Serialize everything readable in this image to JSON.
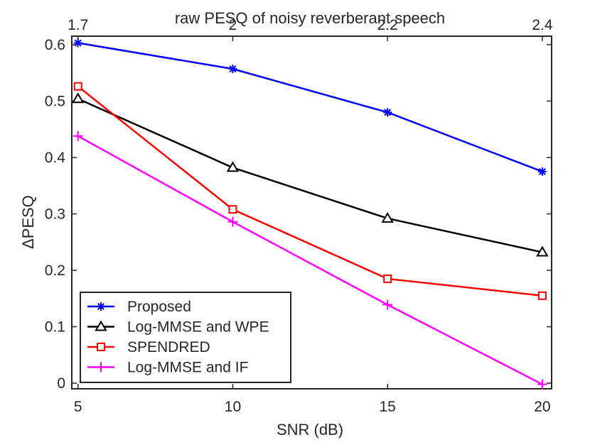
{
  "chart_data": {
    "type": "line",
    "title": "",
    "xlabel": "SNR (dB)",
    "ylabel_prefix": "Δ",
    "ylabel": "PESQ",
    "top_xlabel": "raw PESQ of noisy reverberant speech",
    "x": [
      5,
      10,
      15,
      20
    ],
    "xlim": [
      4.8,
      20.3
    ],
    "ylim": [
      -0.01,
      0.615
    ],
    "xticks": [
      5,
      10,
      15,
      20
    ],
    "xtick_labels": [
      "5",
      "10",
      "15",
      "20"
    ],
    "yticks": [
      0,
      0.1,
      0.2,
      0.3,
      0.4,
      0.5,
      0.6
    ],
    "ytick_labels": [
      "0",
      "0.1",
      "0.2",
      "0.3",
      "0.4",
      "0.5",
      "0.6"
    ],
    "top_ticks": [
      5,
      10,
      15,
      20
    ],
    "top_tick_labels": [
      "1.7",
      "2",
      "2.2",
      "2.4"
    ],
    "legend_position": "bottom-left",
    "series": [
      {
        "name": "Proposed",
        "color": "#0000ff",
        "marker": "asterisk",
        "values": [
          0.603,
          0.557,
          0.48,
          0.375
        ]
      },
      {
        "name": "Log-MMSE and WPE",
        "color": "#000000",
        "marker": "triangle",
        "values": [
          0.504,
          0.382,
          0.292,
          0.232
        ]
      },
      {
        "name": "SPENDRED",
        "color": "#ff0000",
        "marker": "square",
        "values": [
          0.526,
          0.308,
          0.185,
          0.155
        ]
      },
      {
        "name": "Log-MMSE and IF",
        "color": "#ff00ff",
        "marker": "plus",
        "values": [
          0.438,
          0.286,
          0.139,
          -0.002
        ]
      }
    ]
  }
}
